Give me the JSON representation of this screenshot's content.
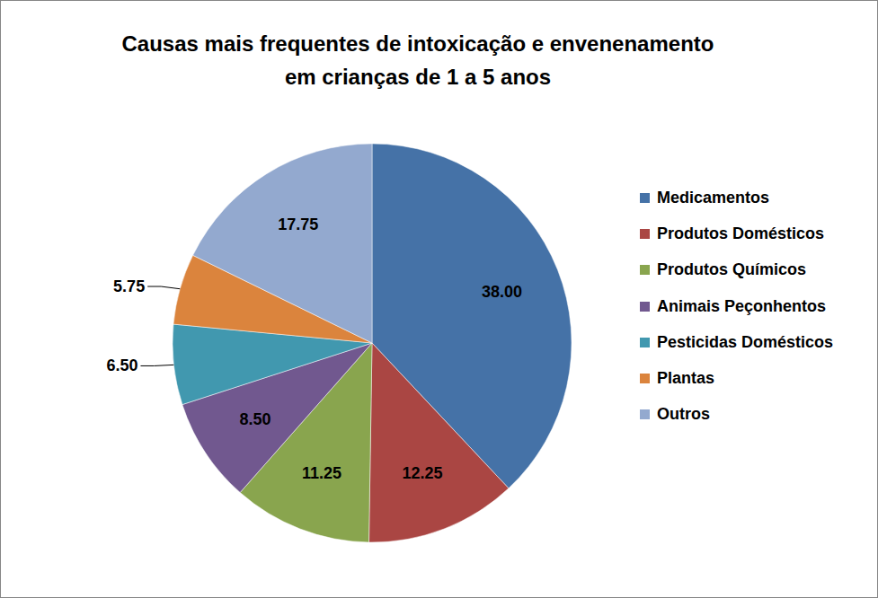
{
  "chart_data": {
    "type": "pie",
    "title": "Causas mais frequentes de intoxicação e envenenamento\nem crianças de 1 a 5 anos",
    "categories": [
      "Medicamentos",
      "Produtos Domésticos",
      "Produtos Químicos",
      "Animais Peçonhentos",
      "Pesticidas Domésticos",
      "Plantas",
      "Outros"
    ],
    "values": [
      38.0,
      12.25,
      11.25,
      8.5,
      6.5,
      5.75,
      17.75
    ],
    "value_labels": [
      "38.00",
      "12.25",
      "11.25",
      "8.50",
      "6.50",
      "5.75",
      "17.75"
    ],
    "colors": [
      "#4572A7",
      "#AA4643",
      "#89A54E",
      "#71588F",
      "#4198AF",
      "#DB843D",
      "#93A9CF"
    ],
    "data_labels": true,
    "legend": "right"
  }
}
